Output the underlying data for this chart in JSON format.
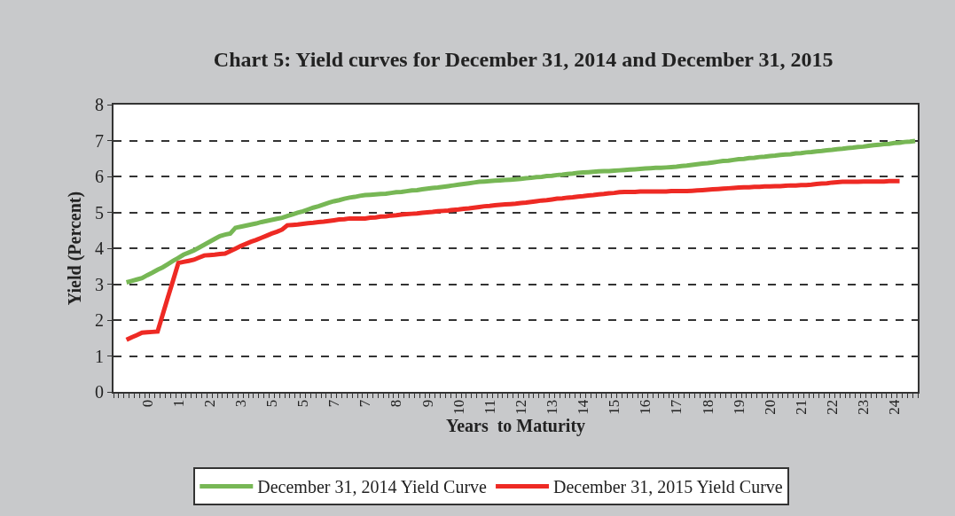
{
  "chart_data": {
    "type": "line",
    "title": "Chart 5: Yield curves for December 31, 2014 and December 31, 2015",
    "xlabel": "Years  to Maturity",
    "ylabel": "Yield (Percent)",
    "categories": [
      null,
      null,
      null,
      null,
      null,
      null,
      "0",
      null,
      null,
      null,
      null,
      null,
      "1",
      null,
      null,
      null,
      null,
      null,
      "2",
      null,
      null,
      null,
      null,
      null,
      "3",
      null,
      null,
      null,
      null,
      null,
      "5",
      null,
      null,
      null,
      null,
      null,
      "5",
      null,
      null,
      null,
      null,
      null,
      "7",
      null,
      null,
      null,
      null,
      null,
      "7",
      null,
      null,
      null,
      null,
      null,
      "8",
      null,
      null,
      null,
      null,
      null,
      "9",
      null,
      null,
      null,
      null,
      null,
      "10",
      null,
      null,
      null,
      null,
      null,
      "11",
      null,
      null,
      null,
      null,
      null,
      "12",
      null,
      null,
      null,
      null,
      null,
      "13",
      null,
      null,
      null,
      null,
      null,
      "14",
      null,
      null,
      null,
      null,
      null,
      "15",
      null,
      null,
      null,
      null,
      null,
      "16",
      null,
      null,
      null,
      null,
      null,
      "17",
      null,
      null,
      null,
      null,
      null,
      "18",
      null,
      null,
      null,
      null,
      null,
      "19",
      null,
      null,
      null,
      null,
      null,
      "20",
      null,
      null,
      null,
      null,
      null,
      "21",
      null,
      null,
      null,
      null,
      null,
      "22",
      null,
      null,
      null,
      null,
      null,
      "23",
      null,
      null,
      null,
      null,
      null,
      "24",
      null,
      null,
      null,
      null
    ],
    "ylim": [
      0,
      8
    ],
    "yticks": [
      0,
      1,
      2,
      3,
      4,
      5,
      6,
      7,
      8
    ],
    "grid": "y",
    "legend": "bottom",
    "line_style": "solid",
    "series": [
      {
        "name": "December 31, 2014 Yield Curve",
        "color": "#77b755",
        "values": [
          null,
          null,
          3.05,
          3.09,
          3.13,
          3.17,
          3.25,
          3.32,
          3.4,
          3.47,
          3.56,
          3.65,
          3.73,
          3.82,
          3.88,
          3.94,
          4.02,
          4.1,
          4.18,
          4.26,
          4.34,
          4.38,
          4.41,
          4.57,
          4.6,
          4.63,
          4.66,
          4.69,
          4.73,
          4.76,
          4.79,
          4.82,
          4.85,
          4.9,
          4.94,
          4.99,
          5.03,
          5.08,
          5.13,
          5.17,
          5.22,
          5.27,
          5.31,
          5.34,
          5.38,
          5.41,
          5.43,
          5.46,
          5.48,
          5.49,
          5.5,
          5.51,
          5.52,
          5.54,
          5.56,
          5.57,
          5.59,
          5.61,
          5.62,
          5.64,
          5.66,
          5.68,
          5.69,
          5.71,
          5.73,
          5.75,
          5.77,
          5.79,
          5.81,
          5.83,
          5.85,
          5.86,
          5.87,
          5.88,
          5.89,
          5.9,
          5.91,
          5.92,
          5.93,
          5.95,
          5.96,
          5.98,
          5.99,
          6.01,
          6.02,
          6.04,
          6.05,
          6.07,
          6.08,
          6.1,
          6.11,
          6.12,
          6.13,
          6.14,
          6.15,
          6.15,
          6.16,
          6.17,
          6.18,
          6.19,
          6.2,
          6.21,
          6.22,
          6.23,
          6.24,
          6.24,
          6.25,
          6.26,
          6.27,
          6.29,
          6.3,
          6.32,
          6.34,
          6.36,
          6.37,
          6.39,
          6.41,
          6.43,
          6.44,
          6.46,
          6.48,
          6.49,
          6.51,
          6.52,
          6.54,
          6.55,
          6.57,
          6.58,
          6.6,
          6.61,
          6.62,
          6.64,
          6.65,
          6.67,
          6.68,
          6.7,
          6.71,
          6.73,
          6.74,
          6.76,
          6.77,
          6.79,
          6.8,
          6.82,
          6.83,
          6.85,
          6.87,
          6.88,
          6.9,
          6.91,
          6.93,
          6.94,
          6.96,
          6.97,
          6.99
        ]
      },
      {
        "name": "December 31, 2015 Yield Curve",
        "color": "#ee2a24",
        "values": [
          null,
          null,
          1.45,
          1.52,
          1.58,
          1.65,
          1.66,
          1.67,
          1.68,
          2.16,
          2.64,
          3.11,
          3.59,
          3.62,
          3.65,
          3.68,
          3.74,
          3.8,
          3.81,
          3.82,
          3.84,
          3.85,
          3.92,
          3.99,
          4.06,
          4.12,
          4.18,
          4.23,
          4.29,
          4.35,
          4.41,
          4.46,
          4.52,
          4.64,
          4.65,
          4.66,
          4.68,
          4.7,
          4.71,
          4.73,
          4.74,
          4.76,
          4.78,
          4.8,
          4.81,
          4.83,
          4.83,
          4.83,
          4.83,
          4.85,
          4.86,
          4.88,
          4.89,
          4.91,
          4.92,
          4.94,
          4.95,
          4.96,
          4.97,
          4.99,
          5.0,
          5.01,
          5.03,
          5.04,
          5.05,
          5.07,
          5.08,
          5.1,
          5.11,
          5.13,
          5.15,
          5.17,
          5.18,
          5.2,
          5.21,
          5.22,
          5.23,
          5.24,
          5.26,
          5.27,
          5.29,
          5.31,
          5.33,
          5.34,
          5.36,
          5.38,
          5.39,
          5.41,
          5.42,
          5.44,
          5.45,
          5.47,
          5.48,
          5.5,
          5.51,
          5.53,
          5.54,
          5.56,
          5.57,
          5.57,
          5.57,
          5.58,
          5.58,
          5.58,
          5.58,
          5.58,
          5.58,
          5.59,
          5.59,
          5.59,
          5.59,
          5.6,
          5.61,
          5.62,
          5.63,
          5.64,
          5.65,
          5.66,
          5.67,
          5.68,
          5.69,
          5.7,
          5.7,
          5.71,
          5.71,
          5.72,
          5.72,
          5.73,
          5.73,
          5.74,
          5.75,
          5.75,
          5.76,
          5.76,
          5.77,
          5.79,
          5.8,
          5.81,
          5.83,
          5.84,
          5.85,
          5.85,
          5.85,
          5.85,
          5.86,
          5.86,
          5.86,
          5.86,
          5.86,
          5.87,
          5.87,
          5.87,
          null,
          null,
          null
        ]
      }
    ]
  }
}
